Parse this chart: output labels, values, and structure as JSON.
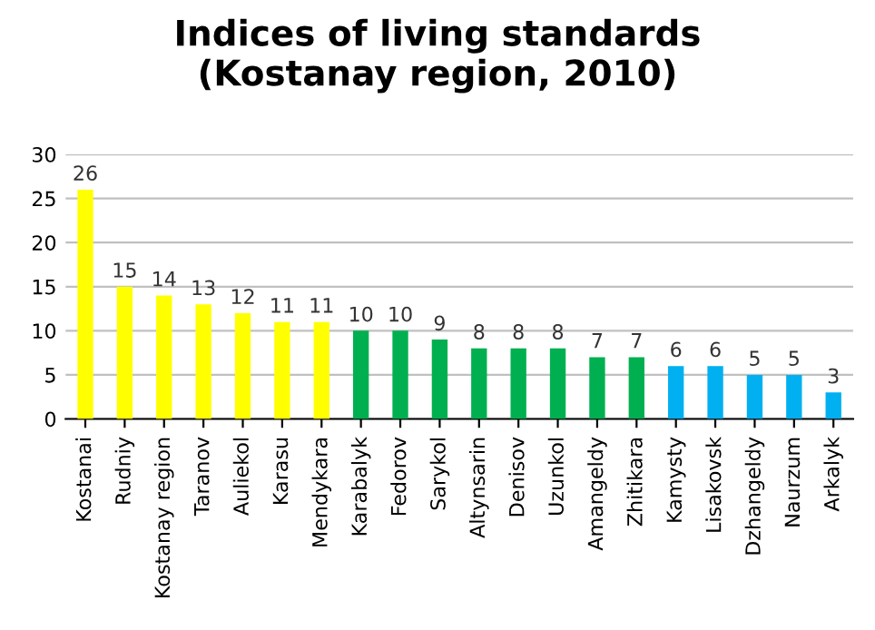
{
  "chart_data": {
    "type": "bar",
    "title": "Indices of living standards\n(Kostanay region, 2010)",
    "categories": [
      "Kostanai",
      "Rudniy",
      "Kostanay region",
      "Taranov",
      "Auliekol",
      "Karasu",
      "Mendykara",
      "Karabalyk",
      "Fedorov",
      "Sarykol",
      "Altynsarin",
      "Denisov",
      "Uzunkol",
      "Amangeldy",
      "Zhitikara",
      "Kamysty",
      "Lisakovsk",
      "Dzhangeldy",
      "Naurzum",
      "Arkalyk"
    ],
    "values": [
      26,
      15,
      14,
      13,
      12,
      11,
      11,
      10,
      10,
      9,
      8,
      8,
      8,
      7,
      7,
      6,
      6,
      5,
      5,
      3
    ],
    "colors": [
      "#ffff00",
      "#ffff00",
      "#ffff00",
      "#ffff00",
      "#ffff00",
      "#ffff00",
      "#ffff00",
      "#00b050",
      "#00b050",
      "#00b050",
      "#00b050",
      "#00b050",
      "#00b050",
      "#00b050",
      "#00b050",
      "#00b0f0",
      "#00b0f0",
      "#00b0f0",
      "#00b0f0",
      "#00b0f0"
    ],
    "ylim": [
      0,
      30
    ],
    "yticks": [
      0,
      5,
      10,
      15,
      20,
      25,
      30
    ],
    "grid": "y",
    "data_labels": true,
    "legend": false
  }
}
